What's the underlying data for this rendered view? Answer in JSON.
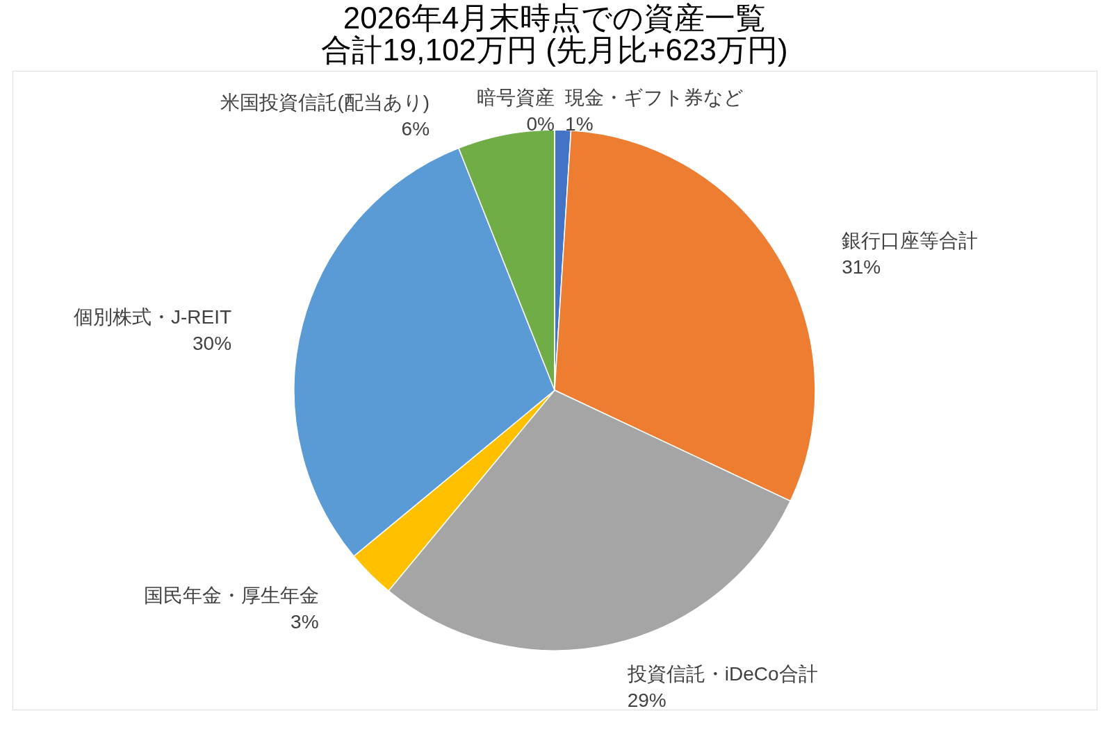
{
  "chart_data": {
    "type": "pie",
    "title": [
      "2026年4月末時点での資産一覧",
      "合計19,102万円 (先月比+623万円)"
    ],
    "categories": [
      "現金・ギフト券など",
      "銀行口座等合計",
      "投資信託・iDeCo合計",
      "国民年金・厚生年金",
      "個別株式・J-REIT",
      "米国投資信託(配当あり)",
      "暗号資産"
    ],
    "values": [
      1,
      31,
      29,
      3,
      30,
      6,
      0
    ],
    "value_labels": [
      "1%",
      "31%",
      "29%",
      "3%",
      "30%",
      "6%",
      "0%"
    ],
    "colors": [
      "#4472c4",
      "#ed7d31",
      "#a5a5a5",
      "#ffc000",
      "#5b9bd5",
      "#70ad47",
      "#264478"
    ],
    "legend": false
  }
}
